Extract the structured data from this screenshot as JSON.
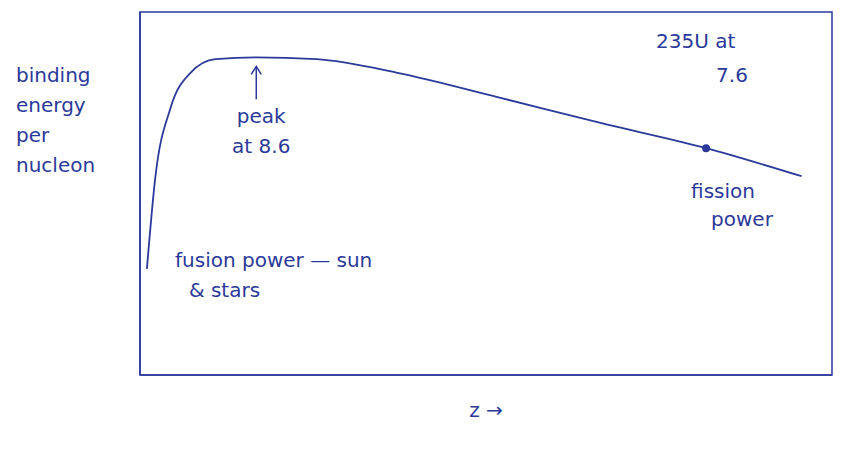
{
  "chart_data": {
    "type": "line",
    "x_label": "z →",
    "y_label": "binding energy per nucleon",
    "x": [
      1.0,
      2.2,
      4.4,
      7.3,
      10.9,
      16.8,
      25.5,
      37.2,
      51.8,
      66.4,
      81.8,
      95.6
    ],
    "values": [
      6.27,
      7.27,
      8.04,
      8.43,
      8.58,
      8.6,
      8.58,
      8.43,
      8.16,
      7.88,
      7.6,
      7.29
    ],
    "color": "#2b3a9a",
    "xlim": [
      0,
      100
    ],
    "ylim": [
      5.1,
      9.1
    ],
    "xticks": [],
    "yticks": [],
    "tick_labels": false,
    "grid": false,
    "marker": "none",
    "points": [
      {
        "label": "peak at 8.6",
        "x": 16.8,
        "y": 8.6,
        "marker": "arrow"
      },
      {
        "label": "235U at 7.6",
        "x": 81.8,
        "y": 7.6,
        "marker": "circle"
      }
    ],
    "annotations": [
      "fission power",
      "fusion power — sun & stars"
    ]
  }
}
